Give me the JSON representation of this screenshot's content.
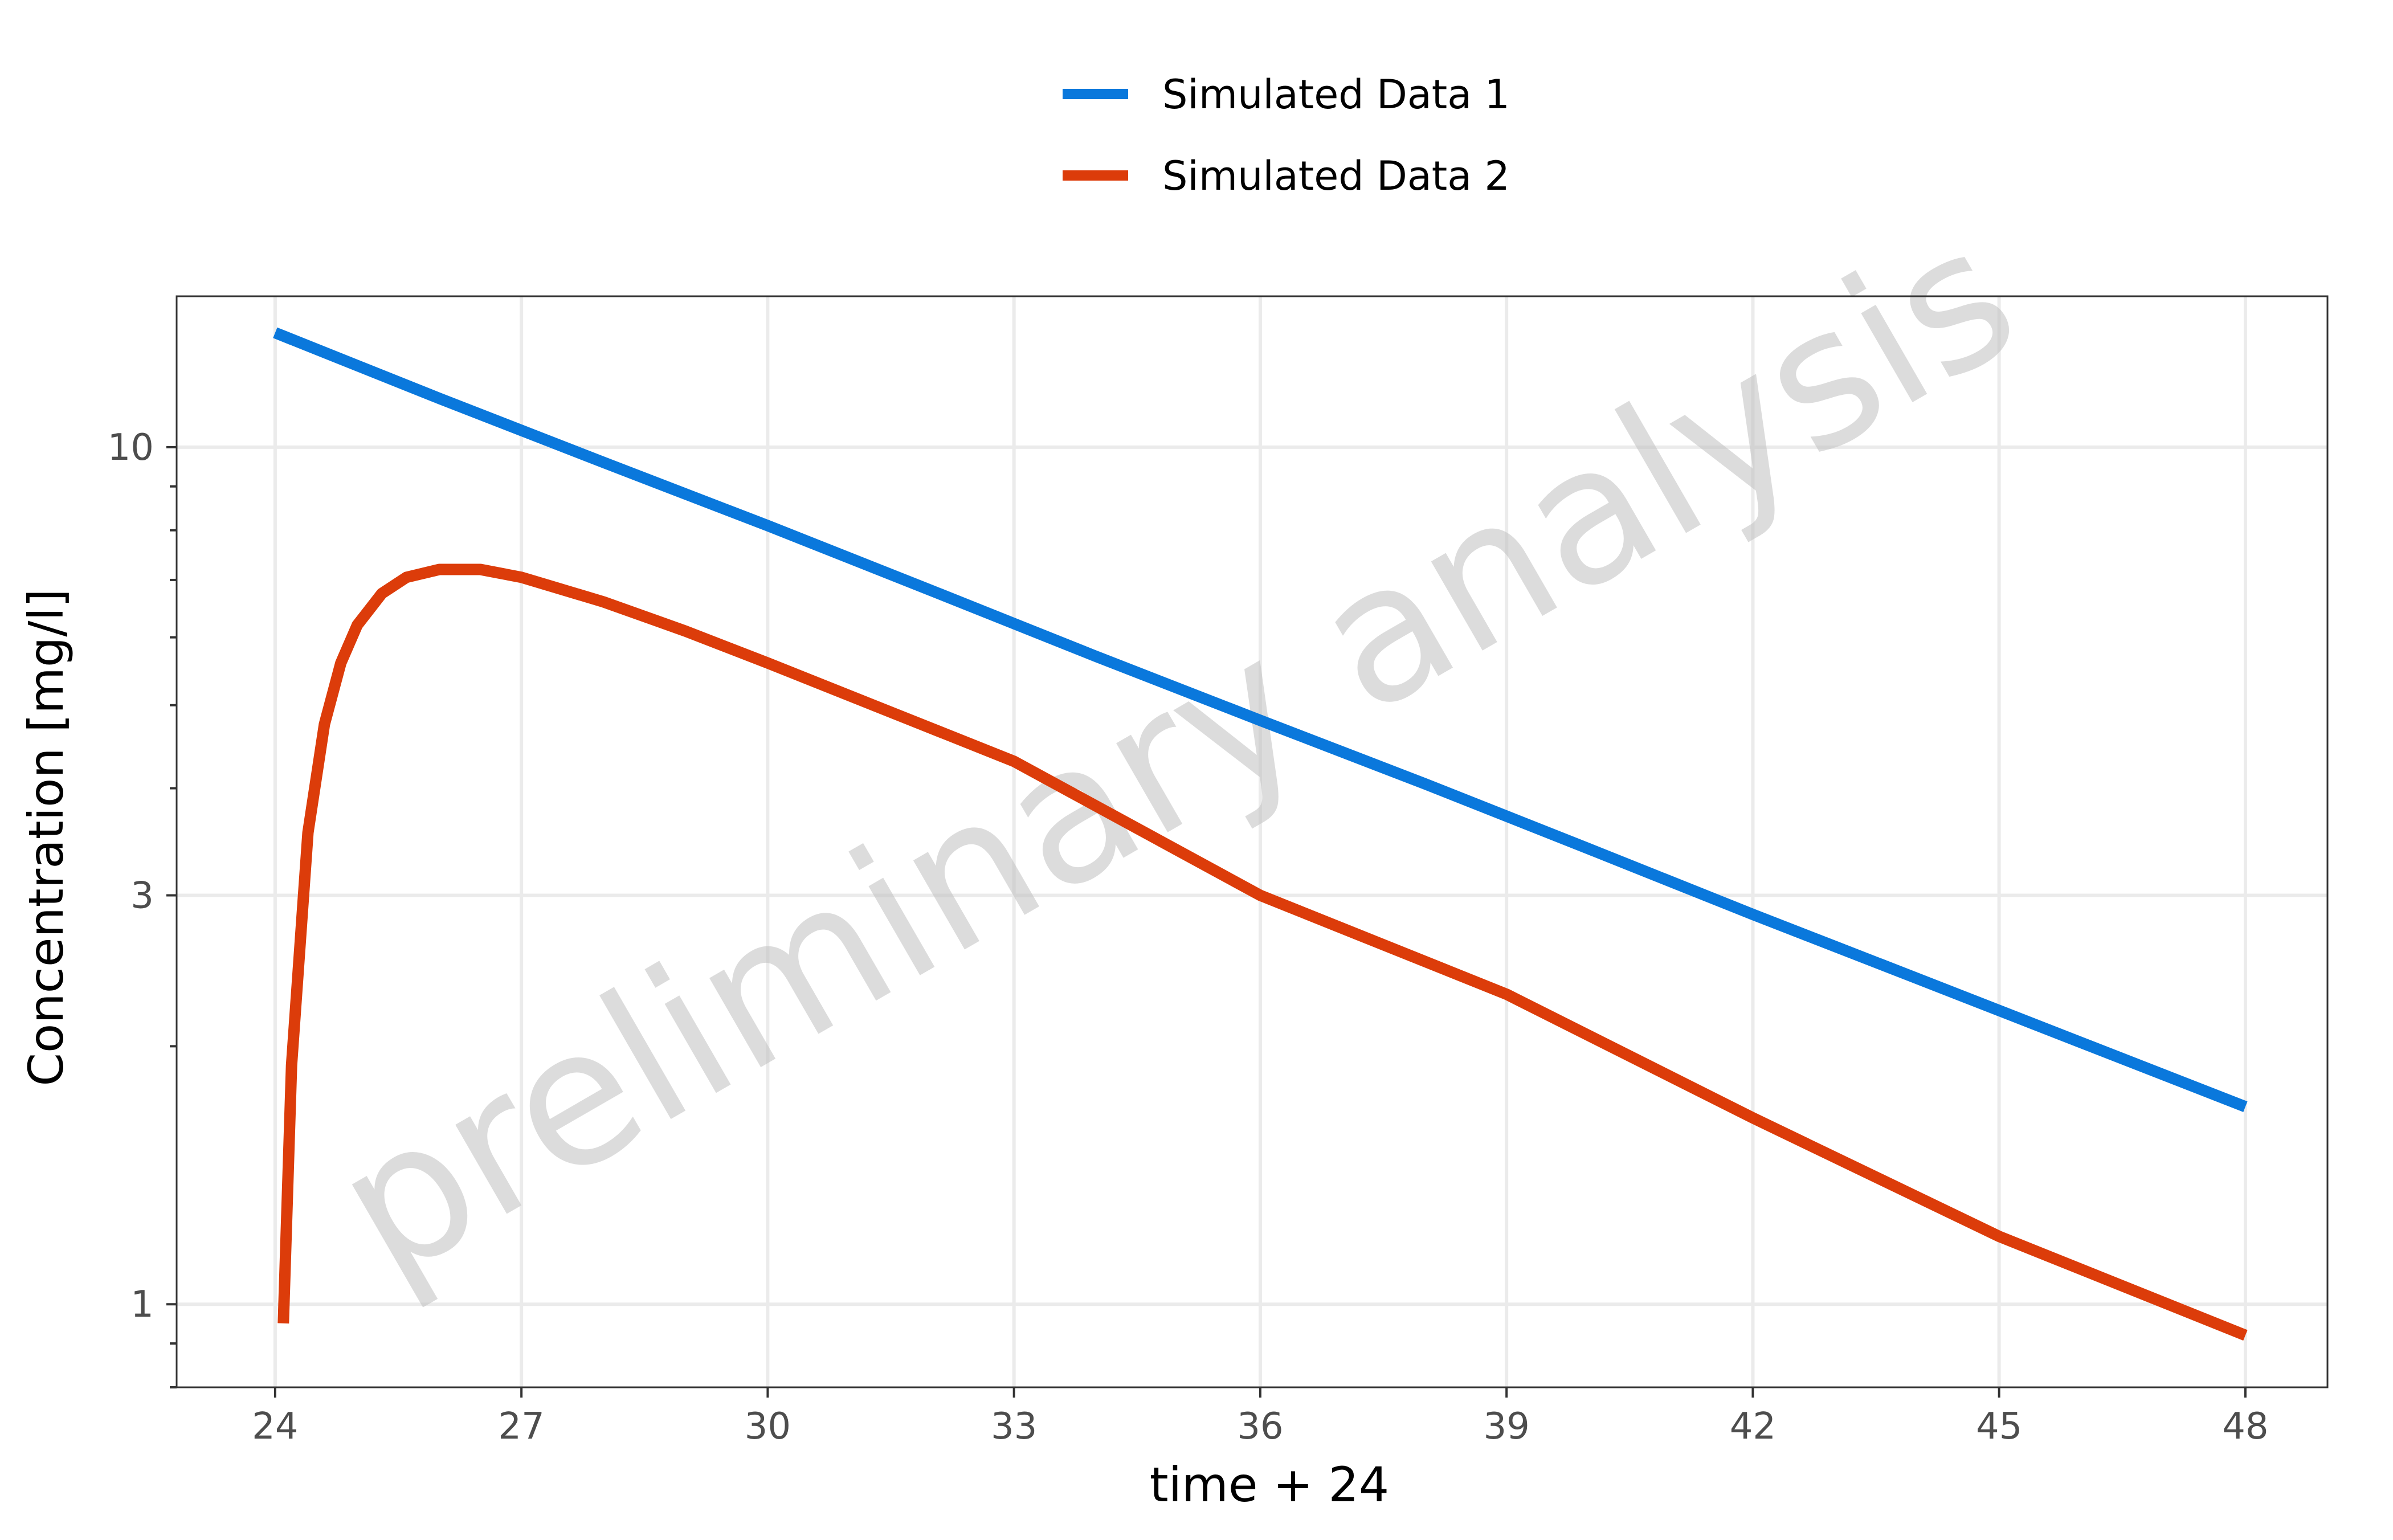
{
  "chart_data": {
    "type": "line",
    "xlabel": "time + 24",
    "ylabel": "Concentration [mg/l]",
    "x_ticks": [
      24,
      27,
      30,
      33,
      36,
      39,
      42,
      45,
      48
    ],
    "y_ticks": [
      1,
      3,
      10
    ],
    "y_tick_labels": [
      "1",
      "3",
      "10"
    ],
    "y_scale": "log",
    "xlim": [
      22.8,
      49.0
    ],
    "ylim": [
      0.8,
      15.0
    ],
    "grid": true,
    "legend_position": "top",
    "watermark": "preliminary analysis",
    "series": [
      {
        "name": "Simulated Data 1",
        "color": "#0a78dc",
        "x": [
          24,
          26,
          28,
          30,
          32,
          34,
          36,
          38,
          40,
          42,
          44,
          46,
          48
        ],
        "y": [
          13.6,
          11.4,
          9.6,
          8.1,
          6.8,
          5.7,
          4.8,
          4.05,
          3.4,
          2.85,
          2.4,
          2.02,
          1.7
        ]
      },
      {
        "name": "Simulated Data 2",
        "color": "#dc3c0a",
        "x": [
          24.1,
          24.2,
          24.4,
          24.6,
          24.8,
          25.0,
          25.3,
          25.6,
          26.0,
          26.5,
          27.0,
          28.0,
          29.0,
          30.0,
          33.0,
          36.0,
          39.0,
          42.0,
          45.0,
          48.0
        ],
        "y": [
          0.95,
          1.9,
          3.55,
          4.75,
          5.6,
          6.2,
          6.75,
          7.05,
          7.2,
          7.2,
          7.05,
          6.6,
          6.1,
          5.6,
          4.3,
          3.0,
          2.3,
          1.65,
          1.2,
          0.92
        ]
      }
    ]
  }
}
